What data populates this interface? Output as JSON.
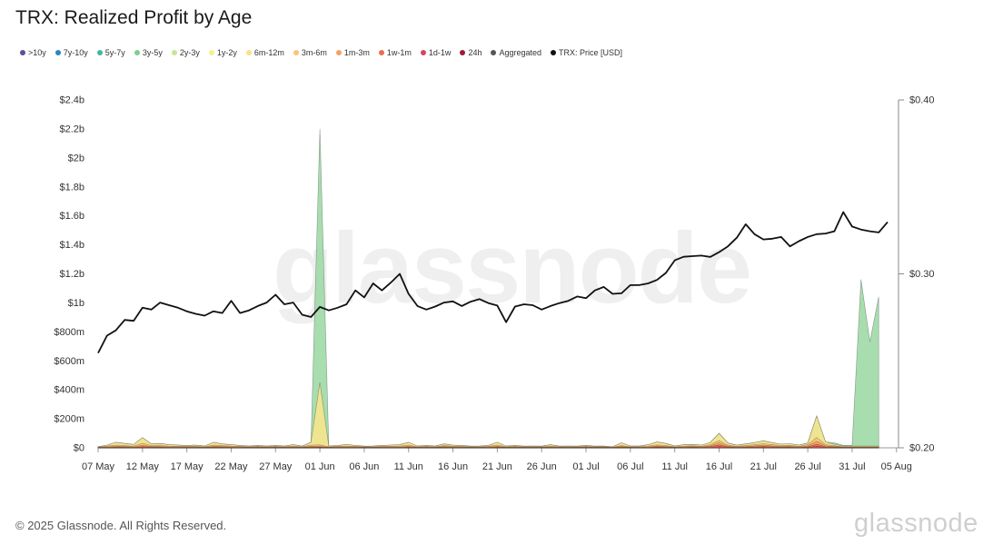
{
  "chart_data": {
    "type": "area",
    "title": "TRX: Realized Profit by Age",
    "x": [
      "07 May",
      "08 May",
      "09 May",
      "10 May",
      "11 May",
      "12 May",
      "13 May",
      "14 May",
      "15 May",
      "16 May",
      "17 May",
      "18 May",
      "19 May",
      "20 May",
      "21 May",
      "22 May",
      "23 May",
      "24 May",
      "25 May",
      "26 May",
      "27 May",
      "28 May",
      "29 May",
      "30 May",
      "31 May",
      "01 Jun",
      "02 Jun",
      "03 Jun",
      "04 Jun",
      "05 Jun",
      "06 Jun",
      "07 Jun",
      "08 Jun",
      "09 Jun",
      "10 Jun",
      "11 Jun",
      "12 Jun",
      "13 Jun",
      "14 Jun",
      "15 Jun",
      "16 Jun",
      "17 Jun",
      "18 Jun",
      "19 Jun",
      "20 Jun",
      "21 Jun",
      "22 Jun",
      "23 Jun",
      "24 Jun",
      "25 Jun",
      "26 Jun",
      "27 Jun",
      "28 Jun",
      "29 Jun",
      "30 Jun",
      "01 Jul",
      "02 Jul",
      "03 Jul",
      "04 Jul",
      "05 Jul",
      "06 Jul",
      "07 Jul",
      "08 Jul",
      "09 Jul",
      "10 Jul",
      "11 Jul",
      "12 Jul",
      "13 Jul",
      "14 Jul",
      "15 Jul",
      "16 Jul",
      "17 Jul",
      "18 Jul",
      "19 Jul",
      "20 Jul",
      "21 Jul",
      "22 Jul",
      "23 Jul",
      "24 Jul",
      "25 Jul",
      "26 Jul",
      "27 Jul",
      "28 Jul",
      "29 Jul",
      "30 Jul",
      "31 Jul",
      "01 Aug",
      "02 Aug",
      "03 Aug",
      "04 Aug"
    ],
    "x_ticks": [
      "07 May",
      "12 May",
      "17 May",
      "22 May",
      "27 May",
      "01 Jun",
      "06 Jun",
      "11 Jun",
      "16 Jun",
      "21 Jun",
      "26 Jun",
      "01 Jul",
      "06 Jul",
      "11 Jul",
      "16 Jul",
      "21 Jul",
      "26 Jul",
      "31 Jul",
      "05 Aug"
    ],
    "y_left_ticks": [
      "$0",
      "$200m",
      "$400m",
      "$600m",
      "$800m",
      "$1b",
      "$1.2b",
      "$1.4b",
      "$1.6b",
      "$1.8b",
      "$2b",
      "$2.2b",
      "$2.4b"
    ],
    "y_left_range": [
      0,
      2400
    ],
    "y_right_ticks": [
      "$0.20",
      "$0.30",
      "$0.40"
    ],
    "y_right_range": [
      0.2,
      0.4
    ],
    "series": [
      {
        "name": "3y-5y",
        "color": "#9fd9a6",
        "axis": "left",
        "unit": "$m",
        "values": [
          0,
          0,
          0,
          0,
          0,
          0,
          0,
          0,
          0,
          0,
          0,
          0,
          0,
          0,
          0,
          0,
          0,
          0,
          0,
          0,
          0,
          0,
          0,
          0,
          0,
          1750,
          0,
          0,
          0,
          0,
          0,
          0,
          0,
          0,
          0,
          0,
          0,
          0,
          0,
          0,
          0,
          0,
          0,
          0,
          0,
          0,
          0,
          0,
          0,
          0,
          0,
          0,
          0,
          0,
          0,
          0,
          0,
          0,
          0,
          0,
          0,
          0,
          0,
          0,
          0,
          0,
          0,
          0,
          0,
          0,
          0,
          0,
          0,
          0,
          0,
          0,
          0,
          0,
          0,
          0,
          0,
          0,
          0,
          10,
          5,
          5,
          1150,
          720,
          1030,
          null
        ]
      },
      {
        "name": "6m-12m",
        "color": "#f6e58d",
        "axis": "left",
        "unit": "$m",
        "values": [
          3,
          8,
          20,
          15,
          12,
          40,
          12,
          15,
          10,
          8,
          6,
          8,
          5,
          20,
          12,
          10,
          6,
          5,
          6,
          5,
          6,
          5,
          10,
          4,
          20,
          430,
          5,
          5,
          12,
          6,
          4,
          5,
          6,
          8,
          10,
          20,
          5,
          6,
          5,
          12,
          8,
          6,
          4,
          5,
          6,
          20,
          5,
          6,
          4,
          5,
          4,
          10,
          4,
          5,
          4,
          6,
          4,
          5,
          3,
          20,
          5,
          5,
          10,
          20,
          15,
          5,
          10,
          10,
          8,
          15,
          50,
          15,
          8,
          12,
          15,
          20,
          15,
          10,
          12,
          8,
          12,
          150,
          20,
          10,
          5,
          5,
          5,
          5,
          5,
          null
        ]
      },
      {
        "name": "3m-6m",
        "color": "#fbc37a",
        "axis": "left",
        "unit": "$m",
        "values": [
          2,
          5,
          8,
          6,
          5,
          15,
          6,
          6,
          5,
          4,
          4,
          4,
          3,
          8,
          6,
          5,
          4,
          3,
          4,
          3,
          4,
          3,
          5,
          3,
          8,
          10,
          3,
          4,
          5,
          4,
          3,
          3,
          4,
          5,
          5,
          8,
          3,
          4,
          3,
          6,
          4,
          4,
          3,
          3,
          4,
          8,
          3,
          4,
          3,
          3,
          3,
          5,
          3,
          3,
          3,
          4,
          3,
          3,
          2,
          6,
          3,
          3,
          5,
          8,
          6,
          3,
          5,
          5,
          4,
          8,
          15,
          6,
          4,
          6,
          8,
          10,
          8,
          6,
          6,
          4,
          8,
          25,
          8,
          5,
          3,
          3,
          3,
          3,
          3,
          null
        ]
      },
      {
        "name": "1m-3m",
        "color": "#f4a261",
        "axis": "left",
        "unit": "$m",
        "values": [
          1,
          3,
          5,
          4,
          3,
          8,
          4,
          4,
          3,
          3,
          3,
          3,
          2,
          5,
          4,
          3,
          3,
          2,
          3,
          2,
          3,
          2,
          3,
          2,
          5,
          5,
          2,
          3,
          3,
          3,
          2,
          2,
          3,
          3,
          3,
          5,
          2,
          3,
          2,
          4,
          3,
          3,
          2,
          2,
          3,
          5,
          2,
          3,
          2,
          2,
          2,
          3,
          2,
          2,
          2,
          3,
          2,
          2,
          1,
          4,
          2,
          2,
          3,
          5,
          4,
          2,
          3,
          4,
          3,
          6,
          15,
          5,
          3,
          4,
          6,
          8,
          6,
          4,
          5,
          3,
          6,
          20,
          6,
          4,
          2,
          2,
          2,
          2,
          2,
          null
        ]
      },
      {
        "name": "1w-1m",
        "color": "#e76f51",
        "axis": "left",
        "unit": "$m",
        "values": [
          1,
          2,
          3,
          3,
          2,
          5,
          3,
          3,
          2,
          2,
          2,
          2,
          1,
          3,
          3,
          2,
          2,
          1,
          2,
          1,
          2,
          1,
          2,
          1,
          3,
          3,
          1,
          2,
          2,
          2,
          1,
          1,
          2,
          2,
          2,
          3,
          1,
          2,
          1,
          3,
          2,
          2,
          1,
          1,
          2,
          3,
          1,
          2,
          1,
          1,
          1,
          2,
          1,
          1,
          1,
          2,
          1,
          1,
          1,
          3,
          1,
          1,
          2,
          4,
          3,
          1,
          2,
          3,
          2,
          5,
          12,
          4,
          2,
          3,
          4,
          6,
          4,
          3,
          3,
          2,
          4,
          15,
          4,
          3,
          1,
          1,
          1,
          1,
          1,
          null
        ]
      },
      {
        "name": "1d-1w",
        "color": "#d1495b",
        "axis": "left",
        "unit": "$m",
        "values": [
          0,
          1,
          2,
          2,
          1,
          3,
          2,
          2,
          1,
          1,
          1,
          1,
          1,
          2,
          2,
          1,
          1,
          1,
          1,
          1,
          1,
          1,
          1,
          1,
          2,
          2,
          1,
          1,
          1,
          1,
          1,
          1,
          1,
          1,
          1,
          2,
          1,
          1,
          1,
          2,
          1,
          1,
          1,
          1,
          1,
          2,
          1,
          1,
          1,
          1,
          1,
          1,
          1,
          1,
          1,
          1,
          1,
          1,
          0,
          2,
          1,
          1,
          1,
          3,
          2,
          1,
          1,
          2,
          1,
          3,
          8,
          3,
          1,
          2,
          3,
          4,
          3,
          2,
          2,
          1,
          3,
          10,
          3,
          2,
          1,
          1,
          1,
          1,
          1,
          null
        ]
      },
      {
        "name": "TRX: Price [USD]",
        "color": "#111111",
        "axis": "right",
        "unit": "USD",
        "values": [
          0.2545,
          0.2645,
          0.2675,
          0.2735,
          0.273,
          0.2805,
          0.2795,
          0.2835,
          0.282,
          0.2805,
          0.2785,
          0.277,
          0.276,
          0.2785,
          0.2775,
          0.2845,
          0.2775,
          0.279,
          0.2815,
          0.2835,
          0.288,
          0.2825,
          0.2835,
          0.2765,
          0.2752,
          0.281,
          0.279,
          0.2805,
          0.2825,
          0.2905,
          0.2865,
          0.2945,
          0.2905,
          0.295,
          0.3,
          0.2885,
          0.2815,
          0.2795,
          0.2812,
          0.2835,
          0.2842,
          0.2815,
          0.284,
          0.2855,
          0.2832,
          0.2818,
          0.2722,
          0.2812,
          0.2825,
          0.282,
          0.2795,
          0.2815,
          0.2832,
          0.2845,
          0.287,
          0.286,
          0.2905,
          0.2925,
          0.2885,
          0.2888,
          0.2935,
          0.2935,
          0.2945,
          0.2965,
          0.3005,
          0.3078,
          0.3098,
          0.3102,
          0.3105,
          0.3097,
          0.3125,
          0.3158,
          0.3208,
          0.3285,
          0.3228,
          0.3198,
          0.3202,
          0.3212,
          0.3158,
          0.3188,
          0.3212,
          0.3228,
          0.3232,
          0.3245,
          0.3355,
          0.3272,
          0.3255,
          0.3245,
          0.3238,
          0.3298
        ]
      }
    ],
    "legend": [
      {
        "name": ">10y",
        "color": "#5b4fa0"
      },
      {
        "name": "7y-10y",
        "color": "#3182bd"
      },
      {
        "name": "5y-7y",
        "color": "#41b6a6"
      },
      {
        "name": "3y-5y",
        "color": "#7fcf8f"
      },
      {
        "name": "2y-3y",
        "color": "#c7e59a"
      },
      {
        "name": "1y-2y",
        "color": "#f2f28a"
      },
      {
        "name": "6m-12m",
        "color": "#f8e08e"
      },
      {
        "name": "3m-6m",
        "color": "#fbc37a"
      },
      {
        "name": "1m-3m",
        "color": "#f4a261"
      },
      {
        "name": "1w-1m",
        "color": "#e76f51"
      },
      {
        "name": "1d-1w",
        "color": "#d1495b"
      },
      {
        "name": "24h",
        "color": "#9b1d3a"
      },
      {
        "name": "Aggregated",
        "color": "#555555"
      },
      {
        "name": "TRX: Price [USD]",
        "color": "#111111"
      }
    ],
    "legend_position": "top-left",
    "grid": false
  },
  "footer": {
    "copyright": "© 2025 Glassnode. All Rights Reserved.",
    "brand": "glassnode",
    "watermark": "glassnode"
  }
}
